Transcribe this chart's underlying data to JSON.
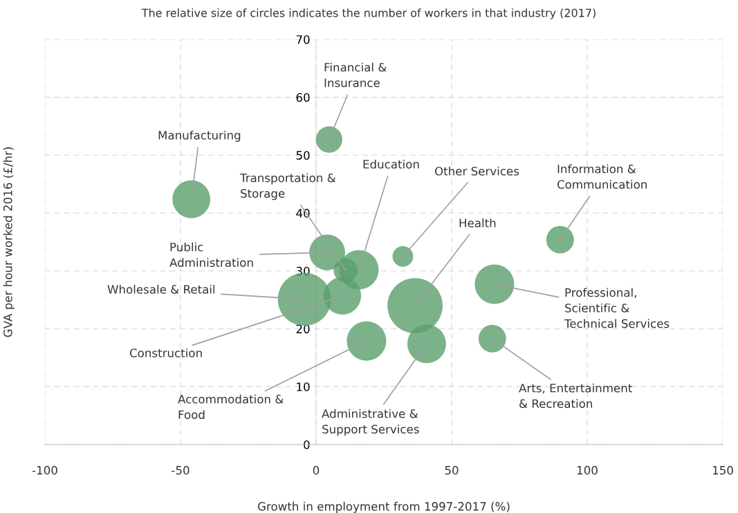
{
  "chart_data": {
    "type": "bubble",
    "title": "The relative size of circles indicates the number of workers in that industry (2017)",
    "xlabel": "Growth in employment from 1997-2017 (%)",
    "ylabel": "GVA per hour worked 2016 (£/hr)",
    "x": [
      4.8,
      -46,
      10.9,
      15.8,
      32,
      36.5,
      90,
      4.1,
      -4.3,
      65.8,
      9.7,
      18.6,
      40.8,
      65
    ],
    "values": [
      52.7,
      42.4,
      30.1,
      30.2,
      32.5,
      24.0,
      35.4,
      33.2,
      25.1,
      27.7,
      25.7,
      17.9,
      17.4,
      18.3
    ],
    "sizes": [
      0.23,
      0.47,
      0.19,
      0.51,
      0.14,
      1,
      0.25,
      0.42,
      0.93,
      0.51,
      0.46,
      0.51,
      0.49,
      0.25
    ],
    "color": "#5a9f6b",
    "xlim": [
      -100,
      150
    ],
    "xticks": [
      -100,
      -50,
      0,
      50,
      100,
      150
    ],
    "ylim": [
      0,
      70
    ],
    "yticks": [
      0,
      10,
      20,
      30,
      40,
      50,
      60,
      70
    ],
    "grid": true,
    "legend": false,
    "annotations": [
      {
        "text": "Financial &\nInsurance",
        "x": 4.8,
        "y": 52.7
      },
      {
        "text": "Manufacturing",
        "x": -46,
        "y": 42.4
      },
      {
        "text": "Transportation &\nStorage",
        "x": 10.9,
        "y": 30.1
      },
      {
        "text": "Education",
        "x": 15.8,
        "y": 30.2
      },
      {
        "text": "Other Services",
        "x": 32,
        "y": 32.5
      },
      {
        "text": "Health",
        "x": 36.5,
        "y": 24.0
      },
      {
        "text": "Information &\nCommunication",
        "x": 90,
        "y": 35.4
      },
      {
        "text": "Public\nAdministration",
        "x": 4.1,
        "y": 33.2
      },
      {
        "text": "Wholesale & Retail",
        "x": -4.3,
        "y": 25.1
      },
      {
        "text": "Professional,\nScientific &\nTechnical Services",
        "x": 65.8,
        "y": 27.7
      },
      {
        "text": "Construction",
        "x": 9.7,
        "y": 25.7
      },
      {
        "text": "Accommodation &\nFood",
        "x": 18.6,
        "y": 17.9
      },
      {
        "text": "Administrative &\nSupport Services",
        "x": 40.8,
        "y": 17.4
      },
      {
        "text": "Arts, Entertainment\n& Recreation",
        "x": 65,
        "y": 18.3
      }
    ]
  }
}
